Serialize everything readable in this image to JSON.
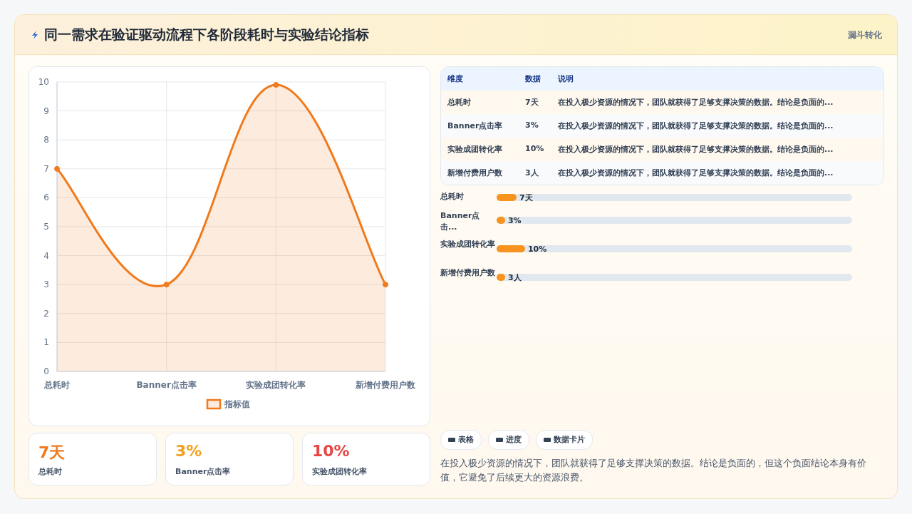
{
  "chart_data": [
    {
      "type": "area",
      "title": "同一需求在验证驱动流程下各阶段耗时与实验结论指标",
      "annotations": [
        "漏斗转化"
      ],
      "categories": [
        "总耗时",
        "Banner点击率",
        "实验成团转化率",
        "新增付费用户数"
      ],
      "series": [
        {
          "name": "指标值",
          "color": "#f07a1c",
          "values": [
            7,
            3,
            9.9,
            3
          ]
        }
      ],
      "ylim": [
        0,
        10
      ],
      "yticks": [
        0,
        1,
        2,
        3,
        4,
        5,
        6,
        7,
        8,
        9,
        10
      ],
      "grid": true,
      "legend": "bottom",
      "marker": "circle",
      "line_style": "solid"
    },
    {
      "type": "other",
      "annotations": [
        "维度",
        "数据",
        "说明",
        "总耗时",
        "7天",
        "在投入极少资源的情况下，团队就获得了足够支撑决策的数据。结论是负面的...",
        "Banner点击率",
        "3%",
        "在投入极少资源的情况下，团队就获得了足够支撑决策的数据。结论是负面的...",
        "实验成团转化率",
        "10%",
        "在投入极少资源的情况下，团队就获得了足够支撑决策的数据。结论是负面的...",
        "新增付费用户数",
        "3人",
        "在投入极少资源的情况下，团队就获得了足够支撑决策的数据。结论是负面的..."
      ]
    },
    {
      "type": "bar",
      "orientation": "horizontal",
      "categories": [
        "总耗时",
        "Banner点击...",
        "实验成团转化率",
        "新增付费用户数"
      ],
      "values": [
        7,
        3,
        10,
        3
      ],
      "value_labels": [
        "7天",
        "3%",
        "10%",
        "3人"
      ],
      "xlim": [
        0,
        125
      ],
      "color": "#f7931e"
    },
    {
      "type": "other",
      "annotations": [
        "7天",
        "总耗时",
        "3%",
        "Banner点击率",
        "10%",
        "实验成团转化率"
      ],
      "colors": [
        "#f07a1c",
        "#f0a01c",
        "#e84545"
      ]
    },
    {
      "type": "other",
      "annotations": [
        "表格",
        "进度",
        "数据卡片",
        "在投入极少资源的情况下，团队就获得了足够支撑决策的数据。结论是负面的，但这个负面结论本身有价值，它避免了后续更大的资源浪费。"
      ]
    }
  ]
}
